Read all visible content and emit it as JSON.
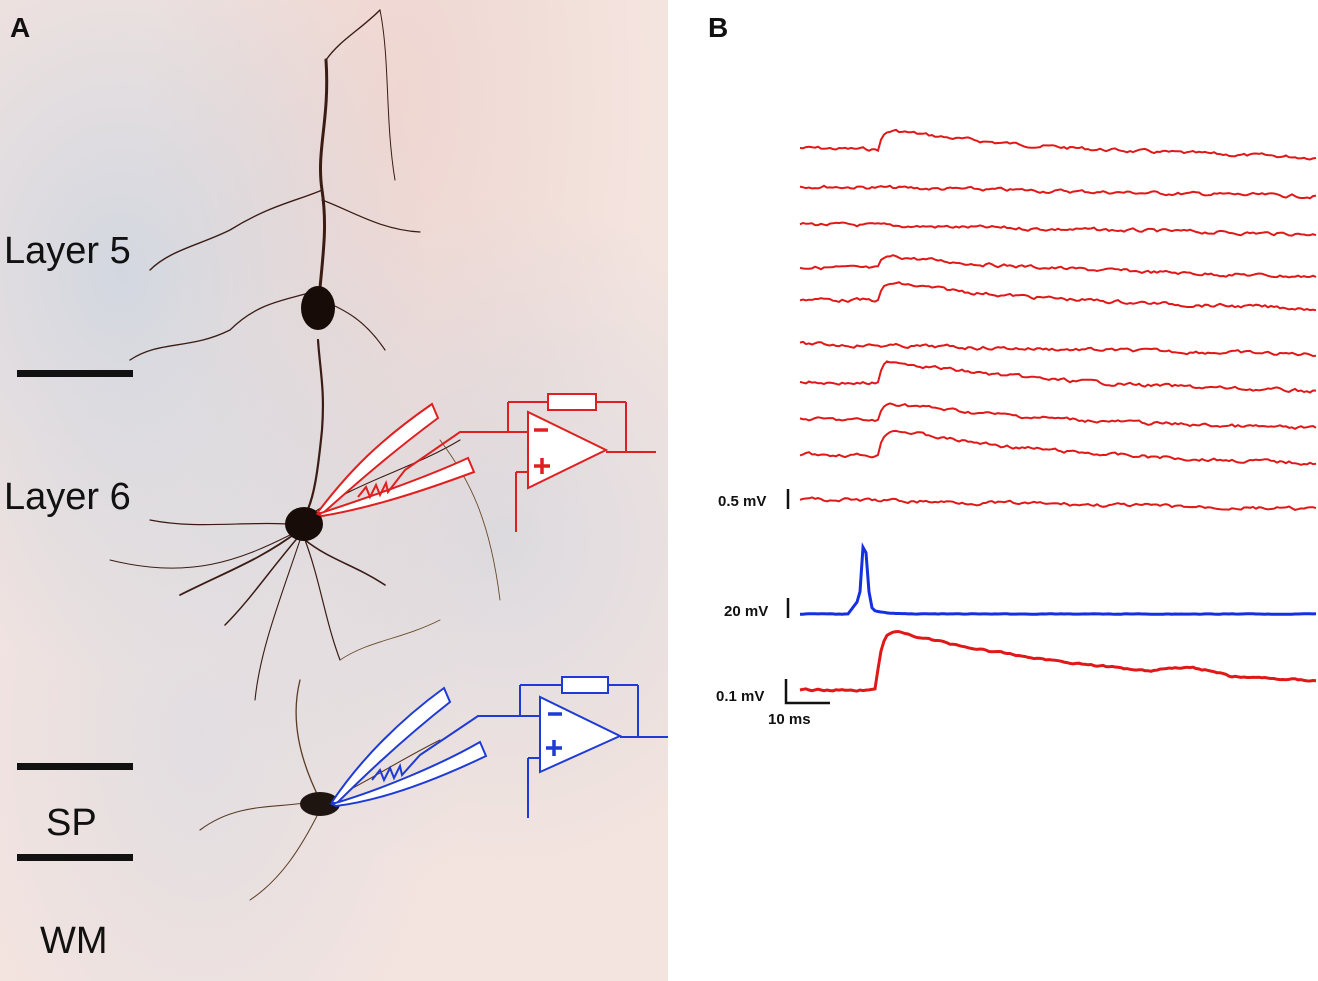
{
  "panels": {
    "a": {
      "letter": "A",
      "layer5": "Layer 5",
      "layer6": "Layer 6",
      "sp": "SP",
      "wm": "WM",
      "colors": {
        "presynaptic": "#e02020",
        "postsynaptic": "#1f3bd6",
        "stain": "#2a1410"
      }
    },
    "b": {
      "letter": "B",
      "scale_trials": "0.5 mV",
      "scale_spike": "20 mV",
      "scale_average": "0.1 mV",
      "scale_time": "10 ms",
      "colors": {
        "epsp": "#e01818",
        "spike": "#1430e0"
      }
    }
  }
}
